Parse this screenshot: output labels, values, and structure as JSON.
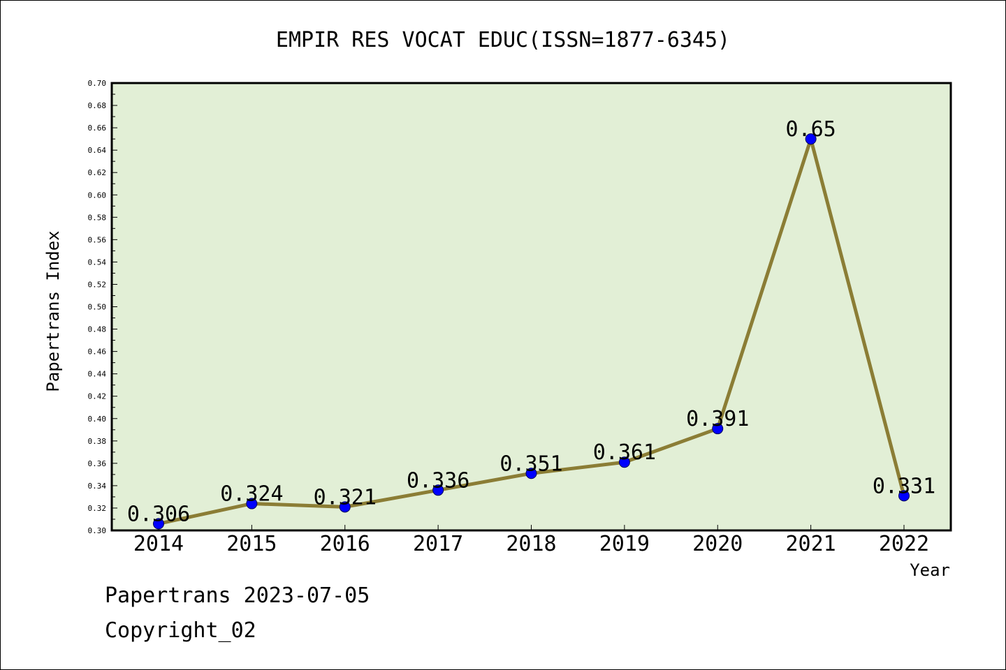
{
  "chart_data": {
    "type": "line",
    "title": "EMPIR RES VOCAT EDUC(ISSN=1877-6345)",
    "xlabel": "Year",
    "ylabel": "Papertrans Index",
    "categories": [
      "2014",
      "2015",
      "2016",
      "2017",
      "2018",
      "2019",
      "2020",
      "2021",
      "2022"
    ],
    "values": [
      0.306,
      0.324,
      0.321,
      0.336,
      0.351,
      0.361,
      0.391,
      0.65,
      0.331
    ],
    "data_labels": [
      "0.306",
      "0.324",
      "0.321",
      "0.336",
      "0.351",
      "0.361",
      "0.391",
      "0.65",
      "0.331"
    ],
    "ylim": [
      0.3,
      0.7
    ],
    "yticks": [
      "0.30",
      "0.32",
      "0.34",
      "0.36",
      "0.38",
      "0.40",
      "0.42",
      "0.44",
      "0.46",
      "0.48",
      "0.50",
      "0.52",
      "0.54",
      "0.56",
      "0.58",
      "0.60",
      "0.62",
      "0.64",
      "0.66",
      "0.68",
      "0.70"
    ],
    "grid": false,
    "legend": "none",
    "colors": {
      "plot_background": "#e2efd6",
      "line": "#8b7d35",
      "marker": "#0000ff",
      "axis": "#000000"
    }
  },
  "footer": {
    "line1": "Papertrans 2023-07-05",
    "line2": "Copyright_02"
  }
}
